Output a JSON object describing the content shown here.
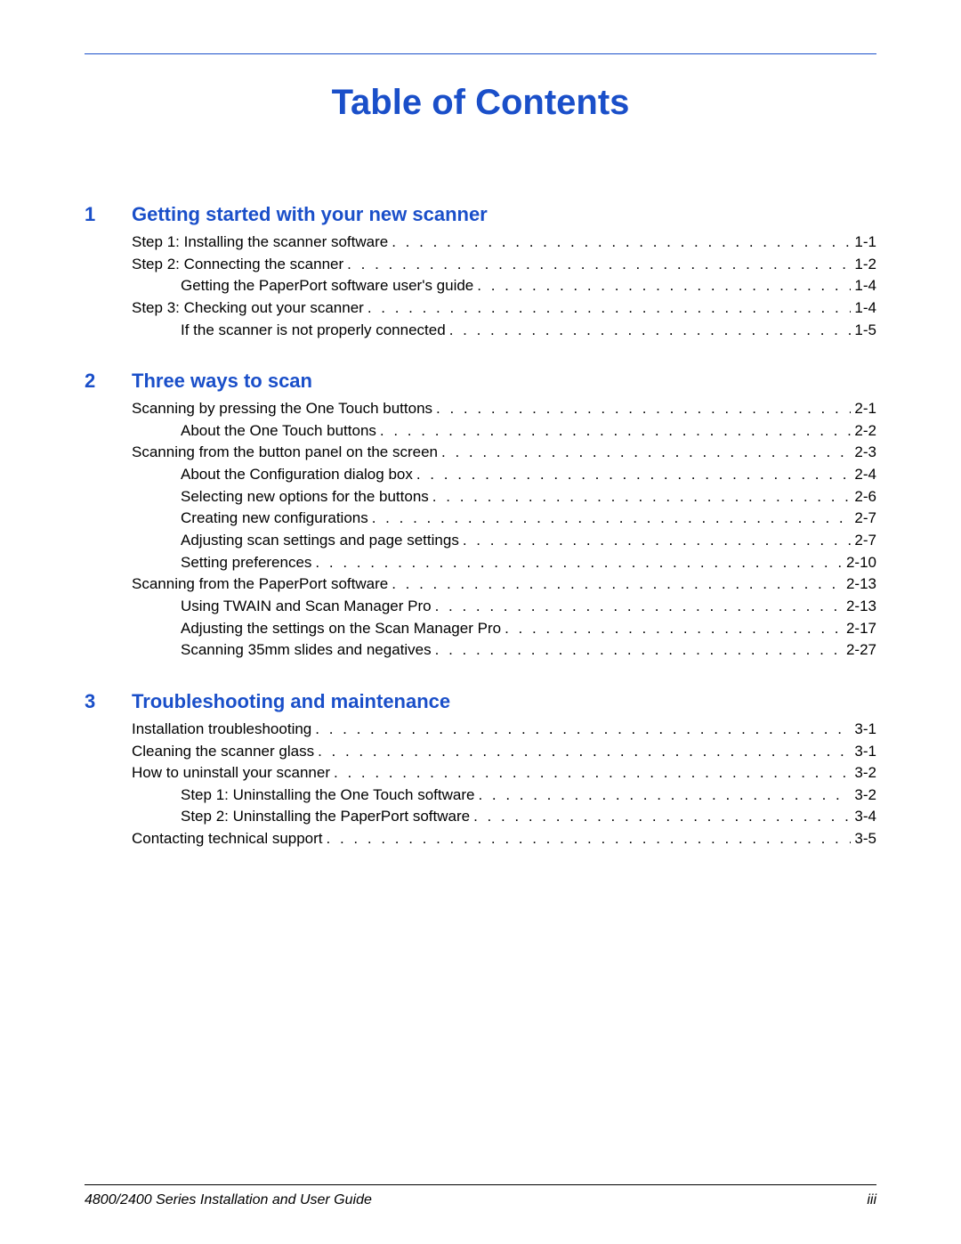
{
  "title": "Table of Contents",
  "sections": [
    {
      "number": "1",
      "title": "Getting started with your new scanner",
      "entries": [
        {
          "label": "Step 1: Installing the scanner software",
          "page": "1-1",
          "indent": 0
        },
        {
          "label": "Step 2: Connecting the scanner",
          "page": "1-2",
          "indent": 0
        },
        {
          "label": "Getting the PaperPort software user's guide",
          "page": "1-4",
          "indent": 1
        },
        {
          "label": "Step 3: Checking out your scanner",
          "page": "1-4",
          "indent": 0
        },
        {
          "label": "If the scanner is not properly connected",
          "page": "1-5",
          "indent": 1
        }
      ]
    },
    {
      "number": "2",
      "title": "Three ways to scan",
      "entries": [
        {
          "label": "Scanning by pressing the One Touch buttons",
          "page": "2-1",
          "indent": 0
        },
        {
          "label": "About the One Touch buttons",
          "page": "2-2",
          "indent": 1
        },
        {
          "label": "Scanning from the button panel on the screen",
          "page": "2-3",
          "indent": 0
        },
        {
          "label": "About the Configuration dialog box",
          "page": "2-4",
          "indent": 1
        },
        {
          "label": "Selecting new options for the buttons",
          "page": "2-6",
          "indent": 1
        },
        {
          "label": "Creating new configurations",
          "page": "2-7",
          "indent": 1
        },
        {
          "label": "Adjusting scan settings and page settings",
          "page": "2-7",
          "indent": 1
        },
        {
          "label": "Setting preferences",
          "page": "2-10",
          "indent": 1
        },
        {
          "label": "Scanning from the PaperPort software",
          "page": "2-13",
          "indent": 0
        },
        {
          "label": "Using TWAIN and Scan Manager Pro",
          "page": "2-13",
          "indent": 1
        },
        {
          "label": "Adjusting the settings on the Scan Manager Pro",
          "page": "2-17",
          "indent": 1
        },
        {
          "label": "Scanning 35mm slides and negatives",
          "page": "2-27",
          "indent": 1
        }
      ]
    },
    {
      "number": "3",
      "title": "Troubleshooting and maintenance",
      "entries": [
        {
          "label": "Installation troubleshooting",
          "page": "3-1",
          "indent": 0
        },
        {
          "label": "Cleaning the scanner glass",
          "page": "3-1",
          "indent": 0
        },
        {
          "label": "How to uninstall your scanner",
          "page": "3-2",
          "indent": 0
        },
        {
          "label": "Step 1: Uninstalling the One Touch software",
          "page": "3-2",
          "indent": 1
        },
        {
          "label": "Step 2: Uninstalling the PaperPort software",
          "page": "3-4",
          "indent": 1
        },
        {
          "label": "Contacting technical support",
          "page": "3-5",
          "indent": 0
        }
      ]
    }
  ],
  "footer": {
    "left": "4800/2400 Series Installation and User Guide",
    "right": "iii"
  },
  "colors": {
    "accent": "#1a4fc9",
    "text": "#000000",
    "background": "#ffffff"
  }
}
